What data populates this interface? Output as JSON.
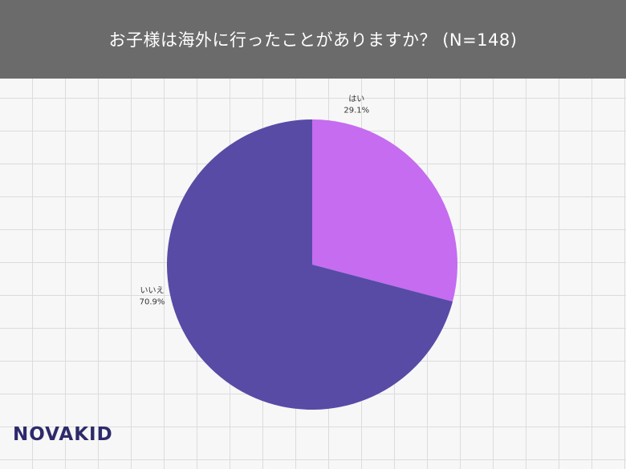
{
  "header": {
    "title": "お子様は海外に行ったことがありますか？ (N=148)"
  },
  "chart_data": {
    "type": "pie",
    "title": "お子様は海外に行ったことがありますか？ (N=148)",
    "n": 148,
    "slices": [
      {
        "label": "はい",
        "value": 29.1,
        "value_label": "29.1%",
        "color": "#c56cf0"
      },
      {
        "label": "いいえ",
        "value": 70.9,
        "value_label": "70.9%",
        "color": "#574ba6"
      }
    ],
    "start_angle_deg": 0,
    "direction": "clockwise",
    "legend": "none"
  },
  "logo": {
    "text": "NOVAKID",
    "color": "#2d2a6b",
    "accent_color": "#e4007f"
  }
}
